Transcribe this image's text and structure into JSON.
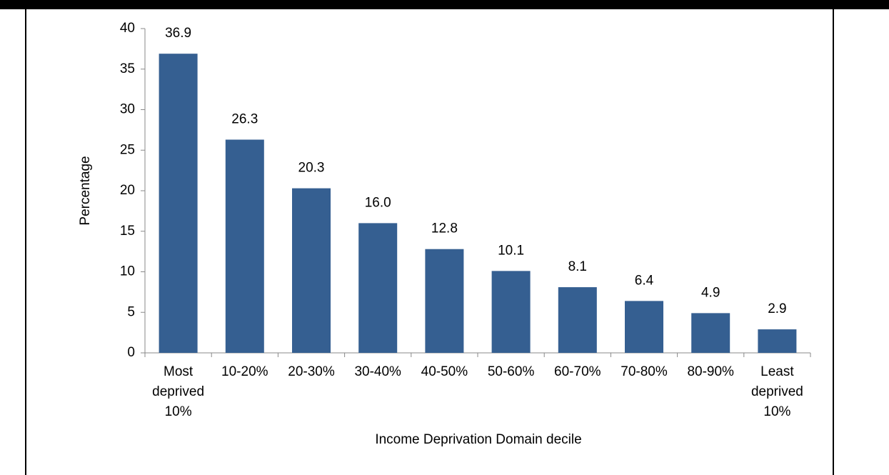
{
  "chart_data": {
    "type": "bar",
    "x_label": "Income Deprivation Domain decile",
    "y_label": "Percentage",
    "categories": [
      "Most deprived 10%",
      "10-20%",
      "20-30%",
      "30-40%",
      "40-50%",
      "50-60%",
      "60-70%",
      "70-80%",
      "80-90%",
      "Least deprived 10%"
    ],
    "values": [
      36.9,
      26.3,
      20.3,
      16.0,
      12.8,
      10.1,
      8.1,
      6.4,
      4.9,
      2.9
    ],
    "value_labels": [
      "36.9",
      "26.3",
      "20.3",
      "16.0",
      "12.8",
      "10.1",
      "8.1",
      "6.4",
      "4.9",
      "2.9"
    ],
    "color": "#355f91",
    "ylim": [
      0,
      40
    ],
    "yticks": [
      0,
      5,
      10,
      15,
      20,
      25,
      30,
      35,
      40
    ],
    "grid": false
  }
}
